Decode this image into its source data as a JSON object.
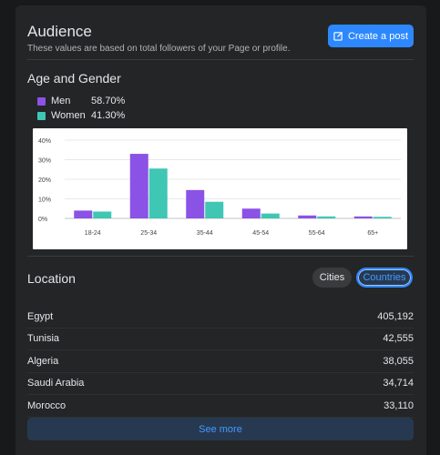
{
  "audience": {
    "title": "Audience",
    "subtitle": "These values are based on total followers of your Page or profile.",
    "create_post_label": "Create a post",
    "create_post_icon": "edit-icon"
  },
  "age_gender": {
    "title": "Age and Gender",
    "legend": [
      {
        "name": "Men",
        "value": "58.70%",
        "color": "#8b52e6"
      },
      {
        "name": "Women",
        "value": "41.30%",
        "color": "#3fc7b4"
      }
    ]
  },
  "chart_data": {
    "type": "bar",
    "categories": [
      "18-24",
      "25-34",
      "35-44",
      "45-54",
      "55-64",
      "65+"
    ],
    "series": [
      {
        "name": "Men",
        "values": [
          4,
          33,
          14.5,
          5,
          1.5,
          1
        ],
        "color": "#8b52e6"
      },
      {
        "name": "Women",
        "values": [
          3.5,
          25.5,
          8.5,
          2.5,
          1,
          0.8
        ],
        "color": "#3fc7b4"
      }
    ],
    "ylim": [
      0,
      40
    ],
    "yticks": [
      "0%",
      "10%",
      "20%",
      "30%",
      "40%"
    ],
    "grid": true
  },
  "location": {
    "title": "Location",
    "tabs": [
      "Cities",
      "Countries"
    ],
    "active_tab": "Countries",
    "rows": [
      {
        "country": "Egypt",
        "value": "405,192"
      },
      {
        "country": "Tunisia",
        "value": "42,555"
      },
      {
        "country": "Algeria",
        "value": "38,055"
      },
      {
        "country": "Saudi Arabia",
        "value": "34,714"
      },
      {
        "country": "Morocco",
        "value": "33,110"
      }
    ],
    "see_more_label": "See more"
  }
}
